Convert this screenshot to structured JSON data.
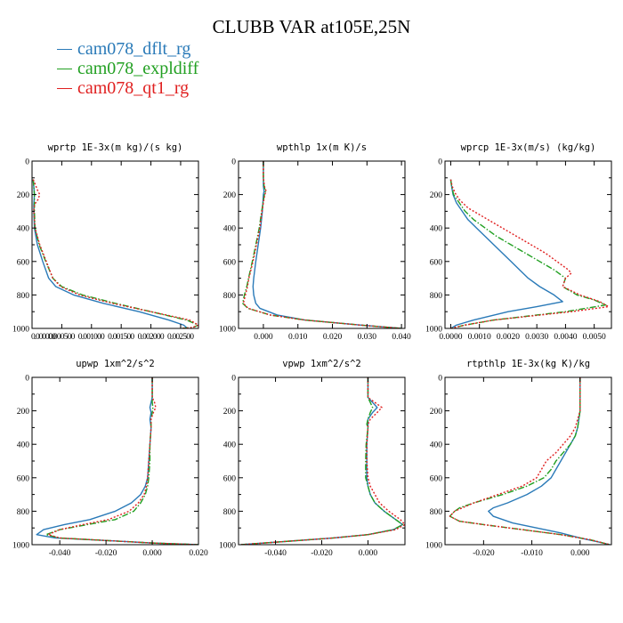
{
  "title": "CLUBB VAR at105E,25N",
  "legend": [
    {
      "label": "cam078_dflt_rg",
      "color": "#2a7ab8",
      "dash": "solid"
    },
    {
      "label": "cam078_expldiff",
      "color": "#22a022",
      "dash": "dashdot"
    },
    {
      "label": "cam078_qt1_rg",
      "color": "#e02020",
      "dash": "dotted"
    }
  ],
  "chart_data": [
    {
      "type": "line",
      "title": "wprtp  1E-3x(m kg)/(s kg)",
      "ylim": [
        1000,
        0
      ],
      "xlim": [
        0,
        0.0028
      ],
      "xticks": [
        0,
        0.0005,
        0.001,
        0.0015,
        0.002,
        0.0025
      ],
      "xtick_labels": [
        "0.000000",
        "0.000500",
        "0.001000",
        "0.001500",
        "0.002000",
        "0.002500"
      ],
      "yticks": [
        0,
        200,
        400,
        600,
        800,
        1000
      ],
      "ytick_labels": [
        "0",
        "200",
        "400",
        "600",
        "800",
        "1000"
      ],
      "series": [
        {
          "name": "cam078_dflt_rg",
          "y": [
            110,
            200,
            260,
            300,
            400,
            500,
            600,
            700,
            750,
            800,
            850,
            900,
            950,
            980,
            995,
            1000
          ],
          "x": [
            2e-05,
            4e-05,
            3e-05,
            3e-05,
            4e-05,
            9e-05,
            0.00018,
            0.00028,
            0.0004,
            0.0007,
            0.0012,
            0.0018,
            0.0023,
            0.00255,
            0.0026,
            0.00262
          ]
        },
        {
          "name": "cam078_expldiff",
          "y": [
            110,
            200,
            260,
            300,
            400,
            500,
            600,
            700,
            750,
            800,
            850,
            900,
            950,
            980,
            995,
            1000
          ],
          "x": [
            2e-05,
            4e-05,
            4e-05,
            4e-05,
            5e-05,
            0.00012,
            0.00023,
            0.00035,
            0.0005,
            0.00085,
            0.0014,
            0.002,
            0.0026,
            0.0028,
            0.0027,
            0.0025
          ]
        },
        {
          "name": "cam078_qt1_rg",
          "y": [
            110,
            180,
            200,
            230,
            260,
            300,
            400,
            500,
            600,
            700,
            750,
            800,
            850,
            900,
            950,
            980,
            995,
            1000
          ],
          "x": [
            2e-05,
            0.0001,
            0.00013,
            0.0001,
            4e-05,
            3e-05,
            5e-05,
            0.00013,
            0.00024,
            0.00035,
            0.00048,
            0.0008,
            0.00135,
            0.002,
            0.00265,
            0.0028,
            0.0027,
            0.0025
          ]
        }
      ]
    },
    {
      "type": "line",
      "title": "wpthlp  1x(m K)/s",
      "ylim": [
        1000,
        0
      ],
      "xlim": [
        -0.0072,
        0.041
      ],
      "xticks": [
        0,
        0.01,
        0.02,
        0.03,
        0.04
      ],
      "xtick_labels": [
        "0.000",
        "0.010",
        "0.020",
        "0.030",
        "0.040"
      ],
      "yticks": [
        0,
        200,
        400,
        600,
        800,
        1000
      ],
      "ytick_labels": [
        "0",
        "200",
        "400",
        "600",
        "800",
        "1000"
      ],
      "series": [
        {
          "name": "cam078_dflt_rg",
          "y": [
            0,
            100,
            150,
            180,
            200,
            300,
            400,
            500,
            600,
            700,
            750,
            800,
            850,
            880,
            920,
            950,
            980,
            1000
          ],
          "x": [
            0,
            0,
            0,
            0.0002,
            0,
            -0.0003,
            -0.0008,
            -0.0015,
            -0.0022,
            -0.0028,
            -0.003,
            -0.0028,
            -0.0022,
            -0.001,
            0.004,
            0.012,
            0.028,
            0.04
          ]
        },
        {
          "name": "cam078_expldiff",
          "y": [
            0,
            100,
            150,
            180,
            200,
            300,
            400,
            500,
            600,
            700,
            750,
            800,
            850,
            880,
            920,
            950,
            980,
            1000
          ],
          "x": [
            0,
            0,
            0.0002,
            0.0006,
            0.0003,
            -0.0005,
            -0.0012,
            -0.0022,
            -0.0032,
            -0.0043,
            -0.0048,
            -0.0055,
            -0.006,
            -0.0045,
            0.002,
            0.012,
            0.028,
            0.04
          ]
        },
        {
          "name": "cam078_qt1_rg",
          "y": [
            0,
            100,
            150,
            180,
            200,
            300,
            400,
            500,
            600,
            700,
            750,
            800,
            850,
            880,
            920,
            950,
            980,
            1000
          ],
          "x": [
            0,
            0,
            0.0003,
            0.0008,
            0.0004,
            -0.0004,
            -0.001,
            -0.002,
            -0.003,
            -0.0042,
            -0.0046,
            -0.0052,
            -0.0058,
            -0.0044,
            0.002,
            0.012,
            0.028,
            0.04
          ]
        }
      ]
    },
    {
      "type": "line",
      "title": "wprcp  1E-3x(m/s) (kg/kg)",
      "ylim": [
        1000,
        0
      ],
      "xlim": [
        -0.0002,
        0.0056
      ],
      "xticks": [
        0,
        0.001,
        0.002,
        0.003,
        0.004,
        0.005
      ],
      "xtick_labels": [
        "0.0000",
        "0.0010",
        "0.0020",
        "0.0030",
        "0.0040",
        "0.0050"
      ],
      "yticks": [
        0,
        200,
        400,
        600,
        800,
        1000
      ],
      "ytick_labels": [
        "0",
        "200",
        "400",
        "600",
        "800",
        "1000"
      ],
      "series": [
        {
          "name": "cam078_dflt_rg",
          "y": [
            110,
            150,
            200,
            250,
            300,
            350,
            400,
            450,
            500,
            550,
            600,
            650,
            700,
            750,
            800,
            840,
            870,
            900,
            950,
            980,
            1000
          ],
          "x": [
            0,
            3e-05,
            8e-05,
            0.0002,
            0.0004,
            0.0006,
            0.0009,
            0.0012,
            0.0015,
            0.0018,
            0.0021,
            0.0024,
            0.0027,
            0.0031,
            0.0036,
            0.0039,
            0.003,
            0.002,
            0.0008,
            0.0002,
            0
          ]
        },
        {
          "name": "cam078_expldiff",
          "y": [
            110,
            150,
            200,
            250,
            300,
            350,
            400,
            450,
            500,
            550,
            600,
            650,
            700,
            750,
            800,
            830,
            860,
            900,
            950,
            980,
            1000
          ],
          "x": [
            0,
            3e-05,
            0.0001,
            0.0003,
            0.0005,
            0.0008,
            0.0012,
            0.0016,
            0.0021,
            0.0026,
            0.0031,
            0.0036,
            0.004,
            0.0039,
            0.0044,
            0.005,
            0.0054,
            0.004,
            0.0015,
            0.0005,
            0
          ]
        },
        {
          "name": "cam078_qt1_rg",
          "y": [
            110,
            150,
            190,
            230,
            280,
            300,
            350,
            400,
            450,
            500,
            550,
            600,
            650,
            670,
            700,
            750,
            800,
            840,
            870,
            900,
            950,
            980,
            1000
          ],
          "x": [
            0,
            5e-05,
            0.00015,
            0.0003,
            0.0006,
            0.0008,
            0.0013,
            0.0018,
            0.0023,
            0.0028,
            0.0033,
            0.0037,
            0.0041,
            0.0042,
            0.004,
            0.0039,
            0.0045,
            0.0052,
            0.0055,
            0.0042,
            0.0015,
            0.0005,
            0
          ]
        }
      ]
    },
    {
      "type": "line",
      "title": "upwp  1xm^2/s^2",
      "ylim": [
        1000,
        0
      ],
      "xlim": [
        -0.052,
        0.02
      ],
      "xticks": [
        -0.04,
        -0.02,
        0,
        0.02
      ],
      "xtick_labels": [
        "-0.040",
        "-0.020",
        "0.000",
        "0.020"
      ],
      "yticks": [
        0,
        200,
        400,
        600,
        800,
        1000
      ],
      "ytick_labels": [
        "0",
        "200",
        "400",
        "600",
        "800",
        "1000"
      ],
      "series": [
        {
          "name": "cam078_dflt_rg",
          "y": [
            0,
            120,
            150,
            180,
            210,
            250,
            300,
            400,
            500,
            600,
            650,
            700,
            750,
            800,
            850,
            880,
            910,
            940,
            960,
            975,
            990,
            1000
          ],
          "x": [
            0,
            0,
            -0.0005,
            -0.001,
            -0.0005,
            -0.001,
            -0.0005,
            -0.001,
            -0.0015,
            -0.002,
            -0.003,
            -0.005,
            -0.009,
            -0.016,
            -0.027,
            -0.038,
            -0.047,
            -0.05,
            -0.042,
            -0.02,
            0,
            0.02
          ]
        },
        {
          "name": "cam078_expldiff",
          "y": [
            0,
            120,
            150,
            180,
            210,
            250,
            300,
            400,
            500,
            600,
            650,
            700,
            750,
            800,
            850,
            880,
            910,
            940,
            960,
            975,
            990,
            1000
          ],
          "x": [
            0,
            0,
            0,
            0.0003,
            0,
            -0.0005,
            -0.0005,
            -0.001,
            -0.001,
            -0.0015,
            -0.002,
            -0.003,
            -0.005,
            -0.008,
            -0.016,
            -0.028,
            -0.04,
            -0.046,
            -0.04,
            -0.02,
            0,
            0.02
          ]
        },
        {
          "name": "cam078_qt1_rg",
          "y": [
            0,
            120,
            150,
            180,
            210,
            250,
            300,
            400,
            500,
            600,
            650,
            700,
            750,
            800,
            850,
            880,
            910,
            940,
            960,
            975,
            990,
            1000
          ],
          "x": [
            0,
            0,
            0.001,
            0.0015,
            0.0005,
            -0.0005,
            -0.0005,
            -0.001,
            -0.0015,
            -0.002,
            -0.0025,
            -0.0035,
            -0.006,
            -0.01,
            -0.019,
            -0.03,
            -0.04,
            -0.045,
            -0.04,
            -0.02,
            0,
            0.02
          ]
        }
      ]
    },
    {
      "type": "line",
      "title": "vpwp  1xm^2/s^2",
      "ylim": [
        1000,
        0
      ],
      "xlim": [
        -0.056,
        0.016
      ],
      "xticks": [
        -0.04,
        -0.02,
        0
      ],
      "xtick_labels": [
        "-0.040",
        "-0.020",
        "0.000"
      ],
      "yticks": [
        0,
        200,
        400,
        600,
        800,
        1000
      ],
      "ytick_labels": [
        "0",
        "200",
        "400",
        "600",
        "800",
        "1000"
      ],
      "series": [
        {
          "name": "cam078_dflt_rg",
          "y": [
            0,
            120,
            150,
            180,
            210,
            250,
            280,
            300,
            400,
            500,
            600,
            650,
            700,
            750,
            800,
            850,
            880,
            910,
            940,
            960,
            980,
            1000
          ],
          "x": [
            0,
            0,
            0.002,
            0.004,
            0.002,
            0,
            0,
            0,
            -0.0005,
            -0.0005,
            -0.0005,
            0,
            0.001,
            0.003,
            0.007,
            0.012,
            0.015,
            0.011,
            0,
            -0.015,
            -0.035,
            -0.055
          ]
        },
        {
          "name": "cam078_expldiff",
          "y": [
            0,
            120,
            150,
            180,
            210,
            250,
            280,
            300,
            400,
            500,
            600,
            650,
            700,
            750,
            800,
            850,
            880,
            910,
            940,
            960,
            980,
            1000
          ],
          "x": [
            0,
            0,
            0.001,
            0.002,
            0.001,
            0,
            -0.0005,
            0,
            -0.0008,
            -0.001,
            -0.001,
            0,
            0.001,
            0.003,
            0.007,
            0.012,
            0.015,
            0.011,
            0,
            -0.015,
            -0.035,
            -0.055
          ]
        },
        {
          "name": "cam078_qt1_rg",
          "y": [
            0,
            120,
            150,
            180,
            210,
            250,
            280,
            300,
            400,
            500,
            600,
            650,
            700,
            750,
            800,
            850,
            880,
            910,
            940,
            960,
            980,
            1000
          ],
          "x": [
            0,
            0,
            0.003,
            0.006,
            0.004,
            0.001,
            0,
            0,
            -0.0005,
            -0.0005,
            0,
            0.001,
            0.003,
            0.005,
            0.009,
            0.014,
            0.016,
            0.012,
            0,
            -0.015,
            -0.035,
            -0.055
          ]
        }
      ]
    },
    {
      "type": "line",
      "title": "rtpthlp  1E-3x(kg K)/kg",
      "ylim": [
        1000,
        0
      ],
      "xlim": [
        -0.028,
        0.0065
      ],
      "xticks": [
        -0.02,
        -0.01,
        0
      ],
      "xtick_labels": [
        "-0.020",
        "-0.010",
        "0.000"
      ],
      "yticks": [
        0,
        200,
        400,
        600,
        800,
        1000
      ],
      "ytick_labels": [
        "0",
        "200",
        "400",
        "600",
        "800",
        "1000"
      ],
      "series": [
        {
          "name": "cam078_dflt_rg",
          "y": [
            0,
            200,
            300,
            350,
            400,
            450,
            500,
            550,
            600,
            650,
            700,
            750,
            780,
            800,
            830,
            870,
            900,
            930,
            960,
            985,
            1000
          ],
          "x": [
            0,
            0,
            -0.0005,
            -0.001,
            -0.002,
            -0.003,
            -0.004,
            -0.005,
            -0.006,
            -0.008,
            -0.011,
            -0.015,
            -0.018,
            -0.019,
            -0.018,
            -0.014,
            -0.009,
            -0.004,
            0,
            0.004,
            0.0062
          ]
        },
        {
          "name": "cam078_expldiff",
          "y": [
            0,
            200,
            300,
            350,
            400,
            450,
            500,
            550,
            600,
            650,
            700,
            750,
            780,
            800,
            830,
            860,
            880,
            910,
            940,
            970,
            1000
          ],
          "x": [
            0,
            0,
            -0.0005,
            -0.001,
            -0.002,
            -0.0035,
            -0.005,
            -0.006,
            -0.0075,
            -0.011,
            -0.016,
            -0.022,
            -0.025,
            -0.026,
            -0.027,
            -0.025,
            -0.02,
            -0.012,
            -0.004,
            0.002,
            0.0062
          ]
        },
        {
          "name": "cam078_qt1_rg",
          "y": [
            0,
            200,
            300,
            350,
            400,
            450,
            500,
            550,
            600,
            650,
            700,
            750,
            800,
            830,
            860,
            880,
            910,
            940,
            970,
            1000
          ],
          "x": [
            0,
            0,
            -0.001,
            -0.002,
            -0.0035,
            -0.005,
            -0.007,
            -0.008,
            -0.009,
            -0.012,
            -0.017,
            -0.022,
            -0.026,
            -0.027,
            -0.025,
            -0.02,
            -0.012,
            -0.004,
            0.002,
            0.0062
          ]
        }
      ]
    }
  ]
}
